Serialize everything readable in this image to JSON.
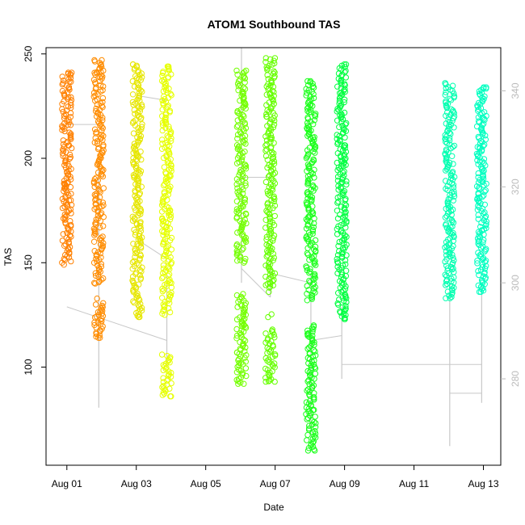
{
  "chart_data": {
    "type": "scatter",
    "title": "ATOM1 Southbound TAS",
    "xlabel": "Date",
    "ylabel": "TAS",
    "x_tick_labels": [
      "Aug 01",
      "Aug 03",
      "Aug 05",
      "Aug 07",
      "Aug 09",
      "Aug 11",
      "Aug 13"
    ],
    "x_tick_values": [
      0,
      2,
      4,
      6,
      8,
      10,
      12
    ],
    "x_range_days": [
      -0.6,
      12.5
    ],
    "y_left_ticks": [
      100,
      150,
      200,
      250
    ],
    "ylim_left": [
      53,
      253
    ],
    "y_right_ticks": [
      280,
      300,
      320,
      340
    ],
    "ylim_right": [
      262,
      349
    ],
    "grid": false,
    "marker": "open-circle",
    "right_axis_color": "#bbbbbb",
    "secondary_series_color": "#c8c8c8",
    "series": [
      {
        "x": 0.0,
        "ymin": 149,
        "ymax": 241,
        "dense": [
          [
            150,
            241
          ]
        ],
        "color": "#ff8000"
      },
      {
        "x": 0.92,
        "ymin": 114,
        "ymax": 247,
        "dense": [
          [
            140,
            247
          ],
          [
            114,
            130
          ]
        ],
        "color": "#ff8c00"
      },
      {
        "x": 2.03,
        "ymin": 124,
        "ymax": 245,
        "dense": [
          [
            124,
            245
          ]
        ],
        "color": "#e6e600"
      },
      {
        "x": 2.88,
        "ymin": 86,
        "ymax": 244,
        "dense": [
          [
            125,
            244
          ],
          [
            86,
            106
          ]
        ],
        "color": "#e6ff00"
      },
      {
        "x": 5.03,
        "ymin": 92,
        "ymax": 242,
        "dense": [
          [
            150,
            242
          ],
          [
            92,
            135
          ]
        ],
        "color": "#73ff00"
      },
      {
        "x": 5.86,
        "ymin": 93,
        "ymax": 248,
        "dense": [
          [
            138,
            248
          ],
          [
            93,
            118
          ]
        ],
        "color": "#66ff00"
      },
      {
        "x": 7.03,
        "ymin": 60,
        "ymax": 237,
        "dense": [
          [
            132,
            237
          ],
          [
            60,
            120
          ]
        ],
        "color": "#1aff1a"
      },
      {
        "x": 7.92,
        "ymin": 123,
        "ymax": 245,
        "dense": [
          [
            123,
            245
          ]
        ],
        "color": "#00ff40"
      },
      {
        "x": 11.03,
        "ymin": 133,
        "ymax": 236,
        "dense": [
          [
            133,
            236
          ]
        ],
        "color": "#00ffb0"
      },
      {
        "x": 11.95,
        "ymin": 136,
        "ymax": 234,
        "dense": [
          [
            136,
            234
          ]
        ],
        "color": "#00ffc0"
      }
    ],
    "secondary_series": {
      "axis": "right",
      "points": [
        [
          0.0,
          333
        ],
        [
          0.92,
          333
        ],
        [
          0.0,
          295
        ],
        [
          2.88,
          288
        ],
        [
          2.03,
          339
        ],
        [
          2.88,
          338
        ],
        [
          2.03,
          309
        ],
        [
          2.88,
          305
        ],
        [
          5.03,
          303
        ],
        [
          5.86,
          297
        ],
        [
          5.03,
          322
        ],
        [
          5.86,
          322
        ],
        [
          5.86,
          302
        ],
        [
          7.03,
          300
        ],
        [
          7.03,
          288
        ],
        [
          7.92,
          289
        ],
        [
          7.92,
          283
        ],
        [
          11.95,
          283
        ],
        [
          11.03,
          277
        ],
        [
          11.95,
          277
        ]
      ],
      "vertical_ranges": [
        [
          0.92,
          274,
          325
        ],
        [
          2.88,
          283,
          302
        ],
        [
          5.03,
          300,
          349
        ],
        [
          5.86,
          297,
          305
        ],
        [
          7.03,
          268,
          302
        ],
        [
          7.92,
          280,
          295
        ],
        [
          11.03,
          266,
          300
        ],
        [
          11.95,
          275,
          300
        ]
      ]
    }
  }
}
